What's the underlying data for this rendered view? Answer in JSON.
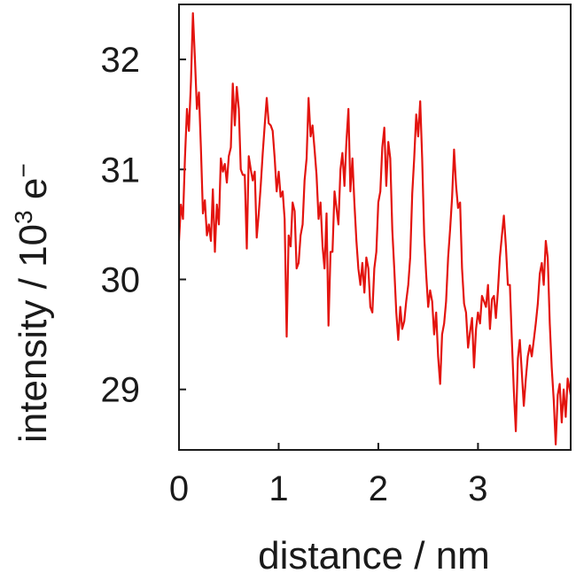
{
  "chart_data": {
    "type": "line",
    "title": "",
    "xlabel": "distance / nm",
    "ylabel": {
      "prefix": "intensity / 10",
      "exp": "3",
      "unit": "e",
      "unit_sup": "−"
    },
    "xlim": [
      0,
      3.93
    ],
    "ylim": [
      28.45,
      32.5
    ],
    "xticks": [
      0,
      1,
      2,
      3
    ],
    "xtick_labels": [
      "0",
      "1",
      "2",
      "3"
    ],
    "yticks": [
      29,
      30,
      31,
      32
    ],
    "ytick_labels": [
      "29",
      "30",
      "31",
      "32"
    ],
    "grid": false,
    "series": [
      {
        "color": "#e3140f",
        "points": [
          [
            0.0,
            30.35
          ],
          [
            0.02,
            30.68
          ],
          [
            0.04,
            30.55
          ],
          [
            0.06,
            31.1
          ],
          [
            0.08,
            31.55
          ],
          [
            0.1,
            31.35
          ],
          [
            0.12,
            31.8
          ],
          [
            0.14,
            32.42
          ],
          [
            0.16,
            32.0
          ],
          [
            0.18,
            31.55
          ],
          [
            0.2,
            31.7
          ],
          [
            0.22,
            31.2
          ],
          [
            0.24,
            30.6
          ],
          [
            0.26,
            30.72
          ],
          [
            0.28,
            30.4
          ],
          [
            0.3,
            30.5
          ],
          [
            0.32,
            30.35
          ],
          [
            0.34,
            30.82
          ],
          [
            0.36,
            30.25
          ],
          [
            0.38,
            30.68
          ],
          [
            0.4,
            30.5
          ],
          [
            0.42,
            31.1
          ],
          [
            0.44,
            30.98
          ],
          [
            0.46,
            31.05
          ],
          [
            0.48,
            30.88
          ],
          [
            0.5,
            31.12
          ],
          [
            0.52,
            31.2
          ],
          [
            0.54,
            31.78
          ],
          [
            0.56,
            31.4
          ],
          [
            0.58,
            31.75
          ],
          [
            0.6,
            31.55
          ],
          [
            0.62,
            31.0
          ],
          [
            0.64,
            30.95
          ],
          [
            0.66,
            30.95
          ],
          [
            0.68,
            30.28
          ],
          [
            0.7,
            31.12
          ],
          [
            0.72,
            31.0
          ],
          [
            0.74,
            30.9
          ],
          [
            0.76,
            30.98
          ],
          [
            0.78,
            30.38
          ],
          [
            0.8,
            30.6
          ],
          [
            0.82,
            30.85
          ],
          [
            0.84,
            31.15
          ],
          [
            0.86,
            31.4
          ],
          [
            0.88,
            31.65
          ],
          [
            0.9,
            31.42
          ],
          [
            0.92,
            31.4
          ],
          [
            0.94,
            31.35
          ],
          [
            0.96,
            31.1
          ],
          [
            0.98,
            30.8
          ],
          [
            1.0,
            30.98
          ],
          [
            1.02,
            30.75
          ],
          [
            1.04,
            30.8
          ],
          [
            1.06,
            30.55
          ],
          [
            1.08,
            29.48
          ],
          [
            1.1,
            30.4
          ],
          [
            1.12,
            30.3
          ],
          [
            1.14,
            30.7
          ],
          [
            1.16,
            30.62
          ],
          [
            1.18,
            30.1
          ],
          [
            1.2,
            30.15
          ],
          [
            1.22,
            30.4
          ],
          [
            1.24,
            30.5
          ],
          [
            1.26,
            30.9
          ],
          [
            1.28,
            31.1
          ],
          [
            1.3,
            31.65
          ],
          [
            1.32,
            31.3
          ],
          [
            1.34,
            31.4
          ],
          [
            1.36,
            31.18
          ],
          [
            1.38,
            30.95
          ],
          [
            1.4,
            30.55
          ],
          [
            1.42,
            30.7
          ],
          [
            1.44,
            30.3
          ],
          [
            1.46,
            30.1
          ],
          [
            1.48,
            30.6
          ],
          [
            1.5,
            29.58
          ],
          [
            1.52,
            30.25
          ],
          [
            1.54,
            30.25
          ],
          [
            1.56,
            30.8
          ],
          [
            1.58,
            30.65
          ],
          [
            1.6,
            30.5
          ],
          [
            1.62,
            31.0
          ],
          [
            1.64,
            31.15
          ],
          [
            1.66,
            30.85
          ],
          [
            1.68,
            31.25
          ],
          [
            1.7,
            31.55
          ],
          [
            1.72,
            30.8
          ],
          [
            1.74,
            31.1
          ],
          [
            1.76,
            30.7
          ],
          [
            1.78,
            30.35
          ],
          [
            1.8,
            30.1
          ],
          [
            1.82,
            29.95
          ],
          [
            1.84,
            30.15
          ],
          [
            1.86,
            29.88
          ],
          [
            1.88,
            30.2
          ],
          [
            1.9,
            30.1
          ],
          [
            1.92,
            29.75
          ],
          [
            1.94,
            29.7
          ],
          [
            1.96,
            30.1
          ],
          [
            1.98,
            30.25
          ],
          [
            2.0,
            30.7
          ],
          [
            2.02,
            30.8
          ],
          [
            2.04,
            31.2
          ],
          [
            2.06,
            31.38
          ],
          [
            2.08,
            30.85
          ],
          [
            2.1,
            31.25
          ],
          [
            2.12,
            31.1
          ],
          [
            2.14,
            30.45
          ],
          [
            2.16,
            30.1
          ],
          [
            2.18,
            29.7
          ],
          [
            2.2,
            29.45
          ],
          [
            2.22,
            29.75
          ],
          [
            2.24,
            29.55
          ],
          [
            2.26,
            29.62
          ],
          [
            2.28,
            29.8
          ],
          [
            2.3,
            29.95
          ],
          [
            2.32,
            30.2
          ],
          [
            2.34,
            30.78
          ],
          [
            2.36,
            31.1
          ],
          [
            2.38,
            31.5
          ],
          [
            2.4,
            31.3
          ],
          [
            2.42,
            31.62
          ],
          [
            2.44,
            31.1
          ],
          [
            2.46,
            30.4
          ],
          [
            2.48,
            30.05
          ],
          [
            2.5,
            29.75
          ],
          [
            2.52,
            29.9
          ],
          [
            2.54,
            29.8
          ],
          [
            2.56,
            29.5
          ],
          [
            2.58,
            29.7
          ],
          [
            2.6,
            29.3
          ],
          [
            2.62,
            29.05
          ],
          [
            2.64,
            29.5
          ],
          [
            2.66,
            29.6
          ],
          [
            2.68,
            29.8
          ],
          [
            2.7,
            30.2
          ],
          [
            2.72,
            30.45
          ],
          [
            2.74,
            30.75
          ],
          [
            2.76,
            31.18
          ],
          [
            2.78,
            30.85
          ],
          [
            2.8,
            30.65
          ],
          [
            2.82,
            30.7
          ],
          [
            2.84,
            30.1
          ],
          [
            2.86,
            29.78
          ],
          [
            2.88,
            29.7
          ],
          [
            2.9,
            29.38
          ],
          [
            2.92,
            29.52
          ],
          [
            2.94,
            29.65
          ],
          [
            2.96,
            29.2
          ],
          [
            2.98,
            29.55
          ],
          [
            3.0,
            29.7
          ],
          [
            3.02,
            29.6
          ],
          [
            3.04,
            29.85
          ],
          [
            3.06,
            29.8
          ],
          [
            3.08,
            29.75
          ],
          [
            3.1,
            29.95
          ],
          [
            3.12,
            29.55
          ],
          [
            3.14,
            29.82
          ],
          [
            3.16,
            29.85
          ],
          [
            3.18,
            29.65
          ],
          [
            3.2,
            29.9
          ],
          [
            3.22,
            30.2
          ],
          [
            3.24,
            30.4
          ],
          [
            3.26,
            30.58
          ],
          [
            3.28,
            30.3
          ],
          [
            3.3,
            29.95
          ],
          [
            3.32,
            29.95
          ],
          [
            3.34,
            29.45
          ],
          [
            3.36,
            28.98
          ],
          [
            3.38,
            28.62
          ],
          [
            3.4,
            29.28
          ],
          [
            3.42,
            29.45
          ],
          [
            3.44,
            29.15
          ],
          [
            3.46,
            28.85
          ],
          [
            3.48,
            29.1
          ],
          [
            3.5,
            29.3
          ],
          [
            3.52,
            29.4
          ],
          [
            3.54,
            29.3
          ],
          [
            3.56,
            29.45
          ],
          [
            3.58,
            29.6
          ],
          [
            3.6,
            29.78
          ],
          [
            3.62,
            30.05
          ],
          [
            3.64,
            30.15
          ],
          [
            3.66,
            29.95
          ],
          [
            3.68,
            30.35
          ],
          [
            3.7,
            30.2
          ],
          [
            3.72,
            29.6
          ],
          [
            3.74,
            29.2
          ],
          [
            3.76,
            28.9
          ],
          [
            3.78,
            28.5
          ],
          [
            3.8,
            28.95
          ],
          [
            3.82,
            29.05
          ],
          [
            3.84,
            28.7
          ],
          [
            3.86,
            29.0
          ],
          [
            3.88,
            28.75
          ],
          [
            3.9,
            29.1
          ],
          [
            3.93,
            28.95
          ]
        ]
      }
    ]
  }
}
